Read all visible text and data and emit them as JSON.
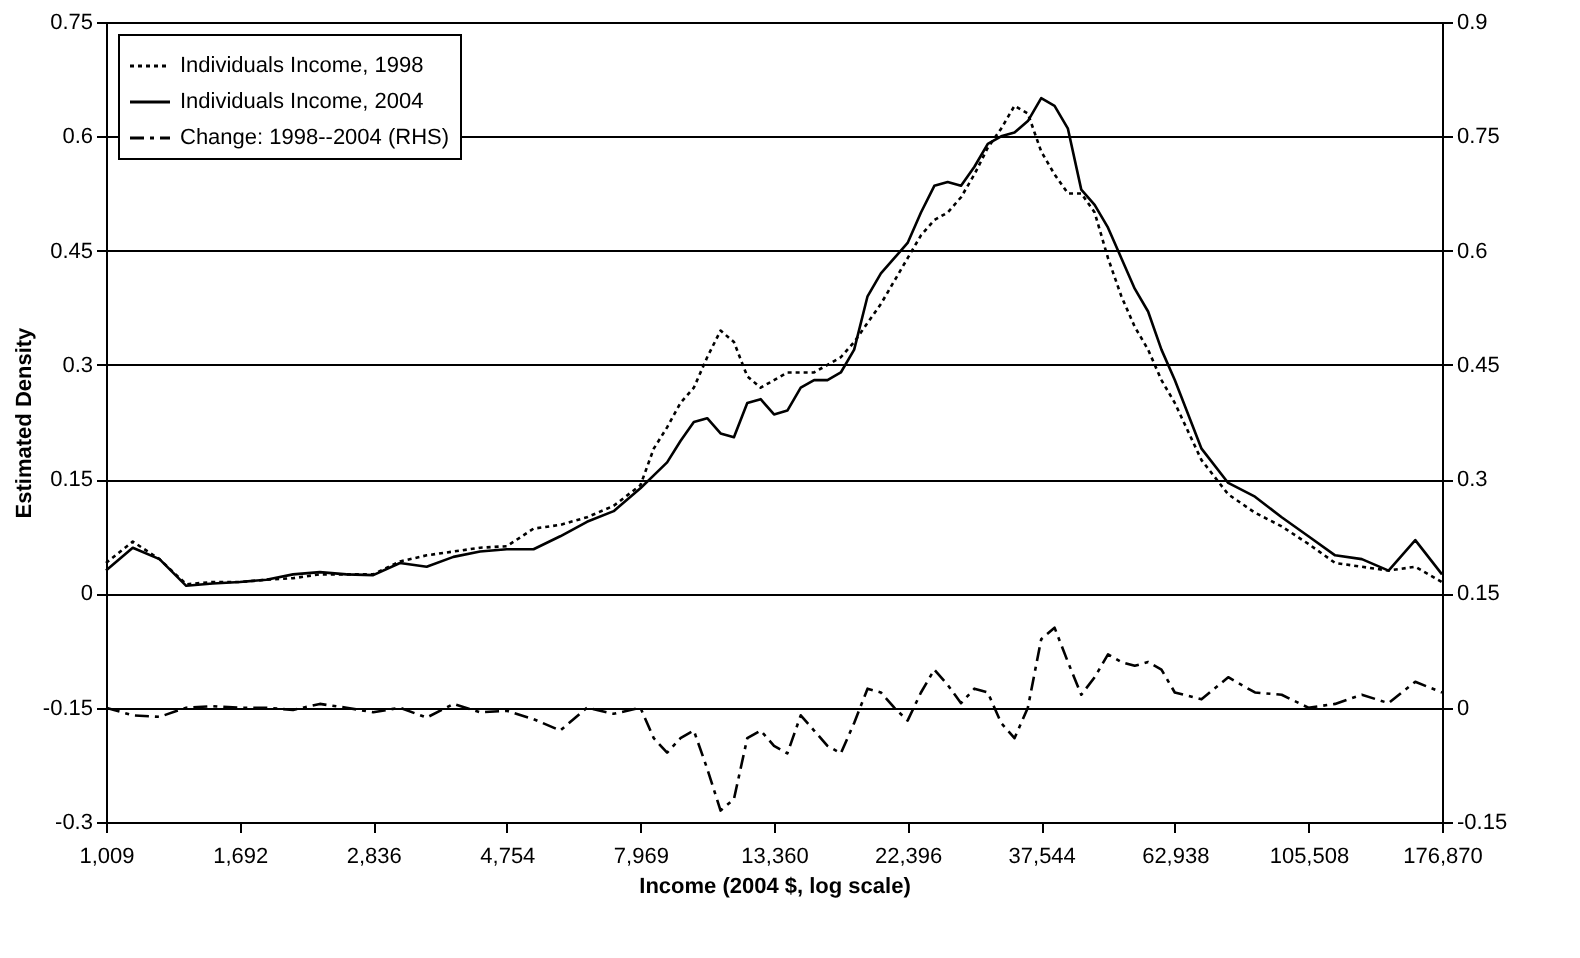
{
  "chart_data": {
    "type": "line",
    "xlabel": "Income (2004 $, log scale)",
    "ylabel": "Estimated Density",
    "log": "x",
    "xlim": [
      1009,
      176870
    ],
    "xticks": [
      {
        "value": 1009,
        "label": "1,009"
      },
      {
        "value": 1692,
        "label": "1,692"
      },
      {
        "value": 2836,
        "label": "2,836"
      },
      {
        "value": 4754,
        "label": "4,754"
      },
      {
        "value": 7969,
        "label": "7,969"
      },
      {
        "value": 13360,
        "label": "13,360"
      },
      {
        "value": 22396,
        "label": "22,396"
      },
      {
        "value": 37544,
        "label": "37,544"
      },
      {
        "value": 62938,
        "label": "62,938"
      },
      {
        "value": 105508,
        "label": "105,508"
      },
      {
        "value": 176870,
        "label": "176,870"
      }
    ],
    "ylim": [
      -0.3,
      0.75
    ],
    "yticks": [
      -0.3,
      -0.15,
      0,
      0.15,
      0.3,
      0.45,
      0.6,
      0.75
    ],
    "y2lim": [
      -0.15,
      0.9
    ],
    "y2ticks": [
      -0.15,
      0,
      0.15,
      0.3,
      0.45,
      0.6,
      0.75,
      0.9
    ],
    "grid": "y",
    "legend": "top left",
    "marker": "none",
    "x": [
      1009,
      1119,
      1241,
      1376,
      1525,
      1692,
      1876,
      2080,
      2307,
      2558,
      2836,
      3145,
      3487,
      3867,
      4287,
      4754,
      5271,
      5845,
      6482,
      7187,
      7969,
      8391,
      8836,
      9305,
      9798,
      10318,
      10865,
      11441,
      12047,
      12687,
      13360,
      14068,
      14814,
      15599,
      16426,
      17298,
      18215,
      19181,
      20198,
      21269,
      22396,
      23583,
      24833,
      26150,
      27536,
      28998,
      30535,
      32154,
      33858,
      35654,
      37544,
      39534,
      41630,
      43836,
      46161,
      48612,
      51187,
      53902,
      56759,
      59770,
      62938,
      69786,
      77382,
      85810,
      95150,
      105508,
      116987,
      129723,
      143846,
      159507,
      176870
    ],
    "series": [
      {
        "name": "Individuals Income, 1998",
        "color": "#000000",
        "line_style": "dotted",
        "values": [
          0.04,
          0.068,
          0.045,
          0.012,
          0.015,
          0.015,
          0.018,
          0.02,
          0.025,
          0.025,
          0.025,
          0.042,
          0.05,
          0.055,
          0.06,
          0.062,
          0.085,
          0.09,
          0.1,
          0.115,
          0.142,
          0.19,
          0.218,
          0.25,
          0.27,
          0.31,
          0.345,
          0.33,
          0.285,
          0.27,
          0.28,
          0.29,
          0.29,
          0.29,
          0.3,
          0.31,
          0.33,
          0.355,
          0.38,
          0.41,
          0.44,
          0.47,
          0.49,
          0.5,
          0.52,
          0.55,
          0.585,
          0.61,
          0.64,
          0.63,
          0.58,
          0.55,
          0.525,
          0.525,
          0.5,
          0.44,
          0.39,
          0.35,
          0.32,
          0.28,
          0.25,
          0.175,
          0.13,
          0.106,
          0.088,
          0.065,
          0.04,
          0.035,
          0.03,
          0.035,
          0.015
        ]
      },
      {
        "name": "Individuals Income, 2004",
        "color": "#000000",
        "line_style": "solid",
        "values": [
          0.03,
          0.06,
          0.045,
          0.01,
          0.013,
          0.015,
          0.018,
          0.025,
          0.028,
          0.025,
          0.024,
          0.04,
          0.035,
          0.048,
          0.055,
          0.058,
          0.058,
          0.075,
          0.094,
          0.108,
          0.138,
          0.155,
          0.172,
          0.2,
          0.225,
          0.23,
          0.21,
          0.205,
          0.25,
          0.255,
          0.235,
          0.24,
          0.27,
          0.28,
          0.28,
          0.29,
          0.32,
          0.39,
          0.42,
          0.44,
          0.46,
          0.5,
          0.535,
          0.54,
          0.535,
          0.56,
          0.59,
          0.6,
          0.605,
          0.62,
          0.65,
          0.64,
          0.61,
          0.53,
          0.51,
          0.48,
          0.44,
          0.4,
          0.37,
          0.32,
          0.28,
          0.19,
          0.145,
          0.127,
          0.1,
          0.075,
          0.05,
          0.045,
          0.03,
          0.07,
          0.025
        ]
      },
      {
        "name": "Change: 1998--2004 (RHS)",
        "color": "#000000",
        "line_style": "dashed",
        "axis": "y2",
        "values": [
          0.0,
          -0.01,
          -0.012,
          0.0,
          0.002,
          0.0,
          0.0,
          -0.003,
          0.005,
          0.0,
          -0.006,
          0.0,
          -0.013,
          0.005,
          -0.006,
          -0.004,
          -0.015,
          -0.03,
          0.0,
          -0.008,
          0.0,
          -0.04,
          -0.059,
          -0.04,
          -0.03,
          -0.08,
          -0.135,
          -0.12,
          -0.04,
          -0.03,
          -0.05,
          -0.06,
          -0.01,
          -0.03,
          -0.05,
          -0.06,
          -0.02,
          0.025,
          0.02,
          0.0,
          -0.017,
          0.02,
          0.05,
          0.03,
          0.006,
          0.025,
          0.02,
          -0.02,
          -0.04,
          0.0,
          0.09,
          0.105,
          0.06,
          0.017,
          0.04,
          0.07,
          0.06,
          0.055,
          0.06,
          0.05,
          0.02,
          0.011,
          0.04,
          0.02,
          0.017,
          0.0,
          0.005,
          0.017,
          0.006,
          0.034,
          0.02
        ]
      }
    ]
  }
}
